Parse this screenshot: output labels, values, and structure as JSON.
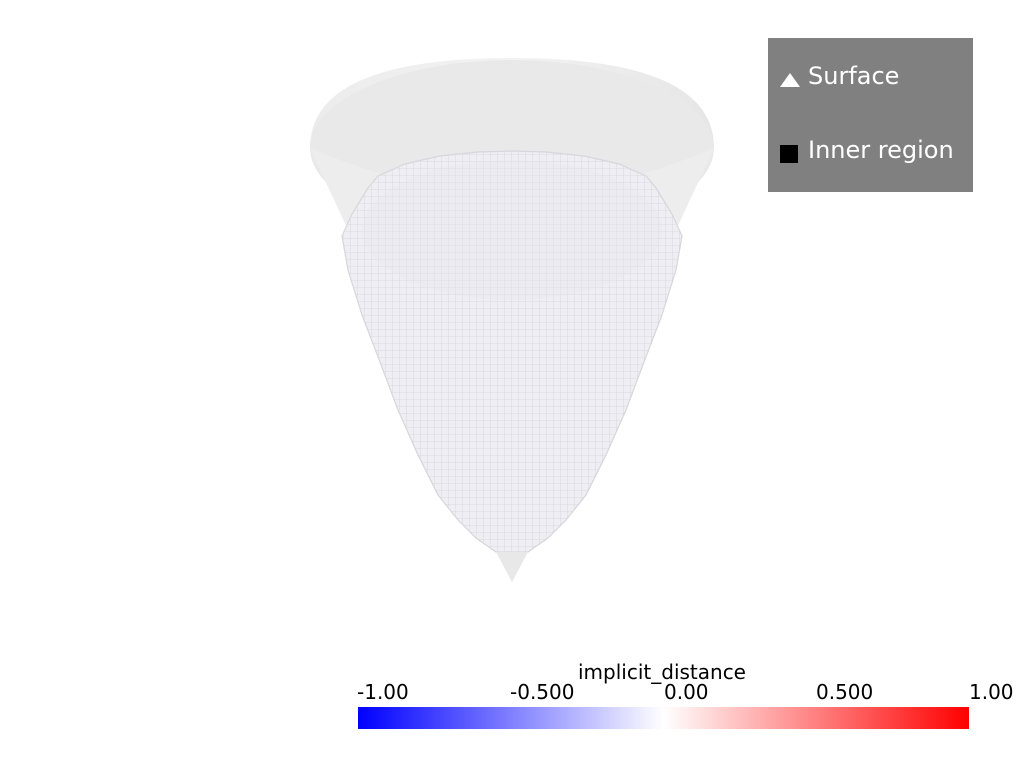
{
  "scene": {
    "background": "#ffffff",
    "surface_color": "#e8e8e8",
    "inner_region_color": "#f0f0f4",
    "grid_line_color": "#cfcfd6"
  },
  "legend": {
    "background": "#808080",
    "entries": [
      {
        "label": "Surface",
        "glyph": "triangle-icon",
        "glyph_color": "#ffffff"
      },
      {
        "label": "Inner region",
        "glyph": "square-icon",
        "glyph_color": "#000000"
      }
    ]
  },
  "colorbar": {
    "title": "implicit_distance",
    "ticks": [
      "-1.00",
      "-0.500",
      "0.00",
      "0.500",
      "1.00"
    ],
    "range": [
      -1.0,
      1.0
    ],
    "colors": [
      "#0000ff",
      "#ffffff",
      "#ff0000"
    ]
  }
}
